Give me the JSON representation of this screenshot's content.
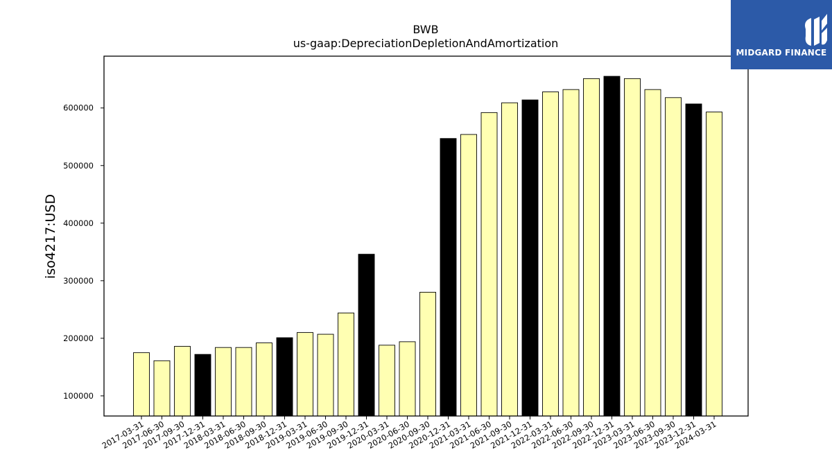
{
  "chart_data": {
    "type": "bar",
    "title": "BWB",
    "subtitle": "us-gaap:DepreciationDepletionAndAmortization",
    "xlabel": "",
    "ylabel": "iso4217:USD",
    "ylim": [
      65000,
      690000
    ],
    "yticks": [
      100000,
      200000,
      300000,
      400000,
      500000,
      600000
    ],
    "grid": false,
    "categories": [
      "2017-03-31",
      "2017-06-30",
      "2017-09-30",
      "2017-12-31",
      "2018-03-31",
      "2018-06-30",
      "2018-09-30",
      "2018-12-31",
      "2019-03-31",
      "2019-06-30",
      "2019-09-30",
      "2019-12-31",
      "2020-03-31",
      "2020-06-30",
      "2020-09-30",
      "2020-12-31",
      "2021-03-31",
      "2021-06-30",
      "2021-09-30",
      "2021-12-31",
      "2022-03-31",
      "2022-06-30",
      "2022-09-30",
      "2022-12-31",
      "2023-03-31",
      "2023-06-30",
      "2023-09-30",
      "2023-12-31",
      "2024-03-31"
    ],
    "values": [
      175000,
      161000,
      186000,
      172000,
      184000,
      184000,
      192000,
      201000,
      210000,
      207000,
      244000,
      346000,
      188000,
      194000,
      280000,
      547000,
      554000,
      592000,
      609000,
      614000,
      628000,
      632000,
      651000,
      655000,
      651000,
      632000,
      618000,
      607000,
      593000
    ],
    "bar_colors": [
      "#ffffb2",
      "#ffffb2",
      "#ffffb2",
      "#000000",
      "#ffffb2",
      "#ffffb2",
      "#ffffb2",
      "#000000",
      "#ffffb2",
      "#ffffb2",
      "#ffffb2",
      "#000000",
      "#ffffb2",
      "#ffffb2",
      "#ffffb2",
      "#000000",
      "#ffffb2",
      "#ffffb2",
      "#ffffb2",
      "#000000",
      "#ffffb2",
      "#ffffb2",
      "#ffffb2",
      "#000000",
      "#ffffb2",
      "#ffffb2",
      "#ffffb2",
      "#000000",
      "#ffffb2"
    ]
  },
  "logo": {
    "text": "MIDGARD FINANCE",
    "background": "#2c5aa8"
  }
}
